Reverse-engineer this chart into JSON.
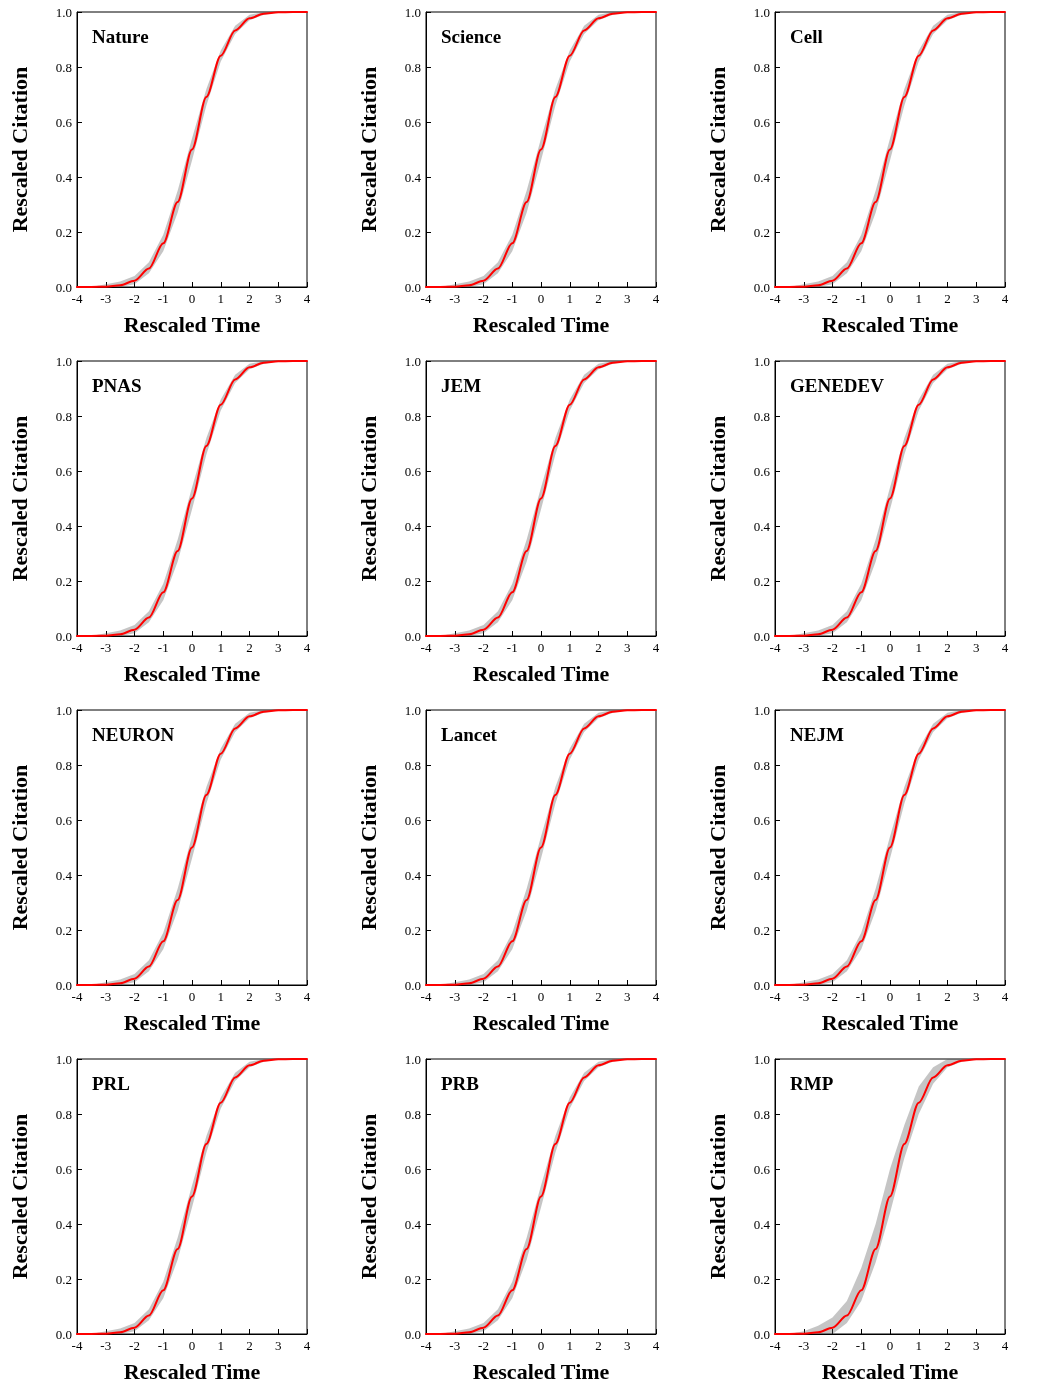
{
  "chart_data": [
    {
      "type": "line",
      "title": "Nature",
      "xlabel": "Rescaled Time",
      "ylabel": "Rescaled Citation",
      "x": [
        -4,
        -3.5,
        -3,
        -2.5,
        -2,
        -1.5,
        -1,
        -0.5,
        0,
        0.5,
        1,
        1.5,
        2,
        2.5,
        3,
        3.5,
        4
      ],
      "series": [
        {
          "color": "#ff0000",
          "values": [
            0,
            0,
            0.001,
            0.006,
            0.023,
            0.067,
            0.159,
            0.309,
            0.5,
            0.691,
            0.841,
            0.933,
            0.977,
            0.994,
            0.999,
            1,
            1
          ],
          "lower": [
            0,
            0,
            0,
            0,
            0.01,
            0.05,
            0.13,
            0.27,
            0.46,
            0.66,
            0.82,
            0.92,
            0.97,
            0.99,
            1,
            1,
            1
          ],
          "upper": [
            0,
            0,
            0.01,
            0.02,
            0.04,
            0.09,
            0.19,
            0.35,
            0.54,
            0.72,
            0.86,
            0.95,
            0.99,
            1,
            1,
            1,
            1
          ]
        }
      ],
      "xlim": [
        -4,
        4
      ],
      "ylim": [
        0,
        1
      ],
      "xticks": [
        -4,
        -3,
        -2,
        -1,
        0,
        1,
        2,
        3,
        4
      ],
      "yticks": [
        {
          "value": 0,
          "label": "0.0"
        },
        {
          "value": 0.2,
          "label": "0.2"
        },
        {
          "value": 0.4,
          "label": "0.4"
        },
        {
          "value": 0.6,
          "label": "0.6"
        },
        {
          "value": 0.8,
          "label": "0.8"
        },
        {
          "value": 1,
          "label": "1.0"
        }
      ],
      "grid": false,
      "marker": "none",
      "line_style": "solid"
    },
    {
      "type": "line",
      "title": "Science",
      "xlabel": "Rescaled Time",
      "ylabel": "Rescaled Citation",
      "x": [
        -4,
        -3.5,
        -3,
        -2.5,
        -2,
        -1.5,
        -1,
        -0.5,
        0,
        0.5,
        1,
        1.5,
        2,
        2.5,
        3,
        3.5,
        4
      ],
      "series": [
        {
          "color": "#ff0000",
          "values": [
            0,
            0,
            0.001,
            0.006,
            0.023,
            0.067,
            0.159,
            0.309,
            0.5,
            0.691,
            0.841,
            0.933,
            0.977,
            0.994,
            0.999,
            1,
            1
          ],
          "lower": [
            0,
            0,
            0,
            0,
            0.01,
            0.05,
            0.13,
            0.27,
            0.46,
            0.66,
            0.82,
            0.92,
            0.97,
            0.99,
            1,
            1,
            1
          ],
          "upper": [
            0,
            0,
            0.01,
            0.02,
            0.04,
            0.09,
            0.19,
            0.35,
            0.54,
            0.72,
            0.86,
            0.95,
            0.99,
            1,
            1,
            1,
            1
          ]
        }
      ],
      "xlim": [
        -4,
        4
      ],
      "ylim": [
        0,
        1
      ],
      "xticks": [
        -4,
        -3,
        -2,
        -1,
        0,
        1,
        2,
        3,
        4
      ],
      "yticks": [
        {
          "value": 0,
          "label": "0.0"
        },
        {
          "value": 0.2,
          "label": "0.2"
        },
        {
          "value": 0.4,
          "label": "0.4"
        },
        {
          "value": 0.6,
          "label": "0.6"
        },
        {
          "value": 0.8,
          "label": "0.8"
        },
        {
          "value": 1,
          "label": "1.0"
        }
      ],
      "grid": false,
      "marker": "none",
      "line_style": "solid"
    },
    {
      "type": "line",
      "title": "Cell",
      "xlabel": "Rescaled Time",
      "ylabel": "Rescaled Citation",
      "x": [
        -4,
        -3.5,
        -3,
        -2.5,
        -2,
        -1.5,
        -1,
        -0.5,
        0,
        0.5,
        1,
        1.5,
        2,
        2.5,
        3,
        3.5,
        4
      ],
      "series": [
        {
          "color": "#ff0000",
          "values": [
            0,
            0,
            0.001,
            0.006,
            0.023,
            0.067,
            0.159,
            0.309,
            0.5,
            0.691,
            0.841,
            0.933,
            0.977,
            0.994,
            0.999,
            1,
            1
          ],
          "lower": [
            0,
            0,
            0,
            0,
            0.01,
            0.05,
            0.13,
            0.27,
            0.46,
            0.66,
            0.82,
            0.92,
            0.97,
            0.99,
            1,
            1,
            1
          ],
          "upper": [
            0,
            0,
            0.01,
            0.02,
            0.04,
            0.09,
            0.19,
            0.35,
            0.54,
            0.72,
            0.86,
            0.95,
            0.99,
            1,
            1,
            1,
            1
          ]
        }
      ],
      "xlim": [
        -4,
        4
      ],
      "ylim": [
        0,
        1
      ],
      "xticks": [
        -4,
        -3,
        -2,
        -1,
        0,
        1,
        2,
        3,
        4
      ],
      "yticks": [
        {
          "value": 0,
          "label": "0.0"
        },
        {
          "value": 0.2,
          "label": "0.2"
        },
        {
          "value": 0.4,
          "label": "0.4"
        },
        {
          "value": 0.6,
          "label": "0.6"
        },
        {
          "value": 0.8,
          "label": "0.8"
        },
        {
          "value": 1,
          "label": "1.0"
        }
      ],
      "grid": false,
      "marker": "none",
      "line_style": "solid"
    },
    {
      "type": "line",
      "title": "PNAS",
      "xlabel": "Rescaled Time",
      "ylabel": "Rescaled Citation",
      "x": [
        -4,
        -3.5,
        -3,
        -2.5,
        -2,
        -1.5,
        -1,
        -0.5,
        0,
        0.5,
        1,
        1.5,
        2,
        2.5,
        3,
        3.5,
        4
      ],
      "series": [
        {
          "color": "#ff0000",
          "values": [
            0,
            0,
            0.001,
            0.006,
            0.023,
            0.067,
            0.159,
            0.309,
            0.5,
            0.691,
            0.841,
            0.933,
            0.977,
            0.994,
            0.999,
            1,
            1
          ],
          "lower": [
            0,
            0,
            0,
            0,
            0.01,
            0.05,
            0.13,
            0.27,
            0.46,
            0.66,
            0.82,
            0.92,
            0.97,
            0.99,
            1,
            1,
            1
          ],
          "upper": [
            0,
            0,
            0.01,
            0.02,
            0.04,
            0.09,
            0.19,
            0.35,
            0.54,
            0.72,
            0.86,
            0.95,
            0.99,
            1,
            1,
            1,
            1
          ]
        }
      ],
      "xlim": [
        -4,
        4
      ],
      "ylim": [
        0,
        1
      ],
      "xticks": [
        -4,
        -3,
        -2,
        -1,
        0,
        1,
        2,
        3,
        4
      ],
      "yticks": [
        {
          "value": 0,
          "label": "0.0"
        },
        {
          "value": 0.2,
          "label": "0.2"
        },
        {
          "value": 0.4,
          "label": "0.4"
        },
        {
          "value": 0.6,
          "label": "0.6"
        },
        {
          "value": 0.8,
          "label": "0.8"
        },
        {
          "value": 1,
          "label": "1.0"
        }
      ],
      "grid": false,
      "marker": "none",
      "line_style": "solid"
    },
    {
      "type": "line",
      "title": "JEM",
      "xlabel": "Rescaled Time",
      "ylabel": "Rescaled Citation",
      "x": [
        -4,
        -3.5,
        -3,
        -2.5,
        -2,
        -1.5,
        -1,
        -0.5,
        0,
        0.5,
        1,
        1.5,
        2,
        2.5,
        3,
        3.5,
        4
      ],
      "series": [
        {
          "color": "#ff0000",
          "values": [
            0,
            0,
            0.001,
            0.006,
            0.023,
            0.067,
            0.159,
            0.309,
            0.5,
            0.691,
            0.841,
            0.933,
            0.977,
            0.994,
            0.999,
            1,
            1
          ],
          "lower": [
            0,
            0,
            0,
            0,
            0.01,
            0.05,
            0.13,
            0.27,
            0.46,
            0.66,
            0.82,
            0.92,
            0.97,
            0.99,
            1,
            1,
            1
          ],
          "upper": [
            0,
            0,
            0.01,
            0.02,
            0.04,
            0.09,
            0.19,
            0.35,
            0.54,
            0.72,
            0.86,
            0.95,
            0.99,
            1,
            1,
            1,
            1
          ]
        }
      ],
      "xlim": [
        -4,
        4
      ],
      "ylim": [
        0,
        1
      ],
      "xticks": [
        -4,
        -3,
        -2,
        -1,
        0,
        1,
        2,
        3,
        4
      ],
      "yticks": [
        {
          "value": 0,
          "label": "0.0"
        },
        {
          "value": 0.2,
          "label": "0.2"
        },
        {
          "value": 0.4,
          "label": "0.4"
        },
        {
          "value": 0.6,
          "label": "0.6"
        },
        {
          "value": 0.8,
          "label": "0.8"
        },
        {
          "value": 1,
          "label": "1.0"
        }
      ],
      "grid": false,
      "marker": "none",
      "line_style": "solid"
    },
    {
      "type": "line",
      "title": "GENEDEV",
      "xlabel": "Rescaled Time",
      "ylabel": "Rescaled Citation",
      "x": [
        -4,
        -3.5,
        -3,
        -2.5,
        -2,
        -1.5,
        -1,
        -0.5,
        0,
        0.5,
        1,
        1.5,
        2,
        2.5,
        3,
        3.5,
        4
      ],
      "series": [
        {
          "color": "#ff0000",
          "values": [
            0,
            0,
            0.001,
            0.006,
            0.023,
            0.067,
            0.159,
            0.309,
            0.5,
            0.691,
            0.841,
            0.933,
            0.977,
            0.994,
            0.999,
            1,
            1
          ],
          "lower": [
            0,
            0,
            0,
            0,
            0.01,
            0.05,
            0.13,
            0.27,
            0.46,
            0.66,
            0.82,
            0.92,
            0.97,
            0.99,
            1,
            1,
            1
          ],
          "upper": [
            0,
            0,
            0.01,
            0.02,
            0.04,
            0.09,
            0.19,
            0.35,
            0.54,
            0.72,
            0.86,
            0.95,
            0.99,
            1,
            1,
            1,
            1
          ]
        }
      ],
      "xlim": [
        -4,
        4
      ],
      "ylim": [
        0,
        1
      ],
      "xticks": [
        -4,
        -3,
        -2,
        -1,
        0,
        1,
        2,
        3,
        4
      ],
      "yticks": [
        {
          "value": 0,
          "label": "0.0"
        },
        {
          "value": 0.2,
          "label": "0.2"
        },
        {
          "value": 0.4,
          "label": "0.4"
        },
        {
          "value": 0.6,
          "label": "0.6"
        },
        {
          "value": 0.8,
          "label": "0.8"
        },
        {
          "value": 1,
          "label": "1.0"
        }
      ],
      "grid": false,
      "marker": "none",
      "line_style": "solid"
    },
    {
      "type": "line",
      "title": "NEURON",
      "xlabel": "Rescaled Time",
      "ylabel": "Rescaled Citation",
      "x": [
        -4,
        -3.5,
        -3,
        -2.5,
        -2,
        -1.5,
        -1,
        -0.5,
        0,
        0.5,
        1,
        1.5,
        2,
        2.5,
        3,
        3.5,
        4
      ],
      "series": [
        {
          "color": "#ff0000",
          "values": [
            0,
            0,
            0.001,
            0.006,
            0.023,
            0.067,
            0.159,
            0.309,
            0.5,
            0.691,
            0.841,
            0.933,
            0.977,
            0.994,
            0.999,
            1,
            1
          ],
          "lower": [
            0,
            0,
            0,
            0,
            0.01,
            0.05,
            0.13,
            0.27,
            0.46,
            0.66,
            0.82,
            0.92,
            0.97,
            0.99,
            1,
            1,
            1
          ],
          "upper": [
            0,
            0,
            0.01,
            0.02,
            0.04,
            0.09,
            0.19,
            0.35,
            0.54,
            0.72,
            0.86,
            0.95,
            0.99,
            1,
            1,
            1,
            1
          ]
        }
      ],
      "xlim": [
        -4,
        4
      ],
      "ylim": [
        0,
        1
      ],
      "xticks": [
        -4,
        -3,
        -2,
        -1,
        0,
        1,
        2,
        3,
        4
      ],
      "yticks": [
        {
          "value": 0,
          "label": "0.0"
        },
        {
          "value": 0.2,
          "label": "0.2"
        },
        {
          "value": 0.4,
          "label": "0.4"
        },
        {
          "value": 0.6,
          "label": "0.6"
        },
        {
          "value": 0.8,
          "label": "0.8"
        },
        {
          "value": 1,
          "label": "1.0"
        }
      ],
      "grid": false,
      "marker": "none",
      "line_style": "solid"
    },
    {
      "type": "line",
      "title": "Lancet",
      "xlabel": "Rescaled Time",
      "ylabel": "Rescaled Citation",
      "x": [
        -4,
        -3.5,
        -3,
        -2.5,
        -2,
        -1.5,
        -1,
        -0.5,
        0,
        0.5,
        1,
        1.5,
        2,
        2.5,
        3,
        3.5,
        4
      ],
      "series": [
        {
          "color": "#ff0000",
          "values": [
            0,
            0,
            0.001,
            0.006,
            0.023,
            0.067,
            0.159,
            0.309,
            0.5,
            0.691,
            0.841,
            0.933,
            0.977,
            0.994,
            0.999,
            1,
            1
          ],
          "lower": [
            0,
            0,
            0,
            0,
            0.01,
            0.05,
            0.13,
            0.27,
            0.46,
            0.66,
            0.82,
            0.92,
            0.97,
            0.99,
            1,
            1,
            1
          ],
          "upper": [
            0,
            0,
            0.01,
            0.02,
            0.04,
            0.09,
            0.19,
            0.35,
            0.54,
            0.72,
            0.86,
            0.95,
            0.99,
            1,
            1,
            1,
            1
          ]
        }
      ],
      "xlim": [
        -4,
        4
      ],
      "ylim": [
        0,
        1
      ],
      "xticks": [
        -4,
        -3,
        -2,
        -1,
        0,
        1,
        2,
        3,
        4
      ],
      "yticks": [
        {
          "value": 0,
          "label": "0.0"
        },
        {
          "value": 0.2,
          "label": "0.2"
        },
        {
          "value": 0.4,
          "label": "0.4"
        },
        {
          "value": 0.6,
          "label": "0.6"
        },
        {
          "value": 0.8,
          "label": "0.8"
        },
        {
          "value": 1,
          "label": "1.0"
        }
      ],
      "grid": false,
      "marker": "none",
      "line_style": "solid"
    },
    {
      "type": "line",
      "title": "NEJM",
      "xlabel": "Rescaled Time",
      "ylabel": "Rescaled Citation",
      "x": [
        -4,
        -3.5,
        -3,
        -2.5,
        -2,
        -1.5,
        -1,
        -0.5,
        0,
        0.5,
        1,
        1.5,
        2,
        2.5,
        3,
        3.5,
        4
      ],
      "series": [
        {
          "color": "#ff0000",
          "values": [
            0,
            0,
            0.001,
            0.006,
            0.023,
            0.067,
            0.159,
            0.309,
            0.5,
            0.691,
            0.841,
            0.933,
            0.977,
            0.994,
            0.999,
            1,
            1
          ],
          "lower": [
            0,
            0,
            0,
            0,
            0.01,
            0.05,
            0.13,
            0.27,
            0.46,
            0.66,
            0.82,
            0.92,
            0.97,
            0.99,
            1,
            1,
            1
          ],
          "upper": [
            0,
            0,
            0.01,
            0.02,
            0.04,
            0.09,
            0.19,
            0.35,
            0.54,
            0.72,
            0.86,
            0.95,
            0.99,
            1,
            1,
            1,
            1
          ]
        }
      ],
      "xlim": [
        -4,
        4
      ],
      "ylim": [
        0,
        1
      ],
      "xticks": [
        -4,
        -3,
        -2,
        -1,
        0,
        1,
        2,
        3,
        4
      ],
      "yticks": [
        {
          "value": 0,
          "label": "0.0"
        },
        {
          "value": 0.2,
          "label": "0.2"
        },
        {
          "value": 0.4,
          "label": "0.4"
        },
        {
          "value": 0.6,
          "label": "0.6"
        },
        {
          "value": 0.8,
          "label": "0.8"
        },
        {
          "value": 1,
          "label": "1.0"
        }
      ],
      "grid": false,
      "marker": "none",
      "line_style": "solid"
    },
    {
      "type": "line",
      "title": "PRL",
      "xlabel": "Rescaled Time",
      "ylabel": "Rescaled Citation",
      "x": [
        -4,
        -3.5,
        -3,
        -2.5,
        -2,
        -1.5,
        -1,
        -0.5,
        0,
        0.5,
        1,
        1.5,
        2,
        2.5,
        3,
        3.5,
        4
      ],
      "series": [
        {
          "color": "#ff0000",
          "values": [
            0,
            0,
            0.001,
            0.006,
            0.023,
            0.067,
            0.159,
            0.309,
            0.5,
            0.691,
            0.841,
            0.933,
            0.977,
            0.994,
            0.999,
            1,
            1
          ],
          "lower": [
            0,
            0,
            0,
            0,
            0.01,
            0.05,
            0.13,
            0.27,
            0.46,
            0.66,
            0.82,
            0.92,
            0.97,
            0.99,
            1,
            1,
            1
          ],
          "upper": [
            0,
            0,
            0.01,
            0.02,
            0.04,
            0.09,
            0.19,
            0.35,
            0.54,
            0.72,
            0.86,
            0.95,
            0.99,
            1,
            1,
            1,
            1
          ]
        }
      ],
      "xlim": [
        -4,
        4
      ],
      "ylim": [
        0,
        1
      ],
      "xticks": [
        -4,
        -3,
        -2,
        -1,
        0,
        1,
        2,
        3,
        4
      ],
      "yticks": [
        {
          "value": 0,
          "label": "0.0"
        },
        {
          "value": 0.2,
          "label": "0.2"
        },
        {
          "value": 0.4,
          "label": "0.4"
        },
        {
          "value": 0.6,
          "label": "0.6"
        },
        {
          "value": 0.8,
          "label": "0.8"
        },
        {
          "value": 1,
          "label": "1.0"
        }
      ],
      "grid": false,
      "marker": "none",
      "line_style": "solid"
    },
    {
      "type": "line",
      "title": "PRB",
      "xlabel": "Rescaled Time",
      "ylabel": "Rescaled Citation",
      "x": [
        -4,
        -3.5,
        -3,
        -2.5,
        -2,
        -1.5,
        -1,
        -0.5,
        0,
        0.5,
        1,
        1.5,
        2,
        2.5,
        3,
        3.5,
        4
      ],
      "series": [
        {
          "color": "#ff0000",
          "values": [
            0,
            0,
            0.001,
            0.006,
            0.023,
            0.067,
            0.159,
            0.309,
            0.5,
            0.691,
            0.841,
            0.933,
            0.977,
            0.994,
            0.999,
            1,
            1
          ],
          "lower": [
            0,
            0,
            0,
            0,
            0.01,
            0.05,
            0.13,
            0.27,
            0.46,
            0.66,
            0.82,
            0.92,
            0.97,
            0.99,
            1,
            1,
            1
          ],
          "upper": [
            0,
            0,
            0.01,
            0.02,
            0.04,
            0.09,
            0.19,
            0.35,
            0.54,
            0.72,
            0.86,
            0.95,
            0.99,
            1,
            1,
            1,
            1
          ]
        }
      ],
      "xlim": [
        -4,
        4
      ],
      "ylim": [
        0,
        1
      ],
      "xticks": [
        -4,
        -3,
        -2,
        -1,
        0,
        1,
        2,
        3,
        4
      ],
      "yticks": [
        {
          "value": 0,
          "label": "0.0"
        },
        {
          "value": 0.2,
          "label": "0.2"
        },
        {
          "value": 0.4,
          "label": "0.4"
        },
        {
          "value": 0.6,
          "label": "0.6"
        },
        {
          "value": 0.8,
          "label": "0.8"
        },
        {
          "value": 1,
          "label": "1.0"
        }
      ],
      "grid": false,
      "marker": "none",
      "line_style": "solid"
    },
    {
      "type": "line",
      "title": "RMP",
      "xlabel": "Rescaled Time",
      "ylabel": "Rescaled Citation",
      "x": [
        -4,
        -3.5,
        -3,
        -2.5,
        -2,
        -1.5,
        -1,
        -0.5,
        0,
        0.5,
        1,
        1.5,
        2,
        2.5,
        3,
        3.5,
        4
      ],
      "series": [
        {
          "color": "#ff0000",
          "values": [
            0,
            0,
            0.001,
            0.006,
            0.023,
            0.067,
            0.159,
            0.309,
            0.5,
            0.691,
            0.841,
            0.933,
            0.977,
            0.994,
            0.999,
            1,
            1
          ],
          "lower": [
            0,
            0,
            0,
            0,
            0,
            0.04,
            0.12,
            0.26,
            0.44,
            0.64,
            0.8,
            0.91,
            0.97,
            0.99,
            1,
            1,
            1
          ],
          "upper": [
            0,
            0,
            0.01,
            0.03,
            0.06,
            0.12,
            0.24,
            0.4,
            0.6,
            0.76,
            0.9,
            0.97,
            1,
            1,
            1,
            1,
            1
          ]
        }
      ],
      "xlim": [
        -4,
        4
      ],
      "ylim": [
        0,
        1
      ],
      "xticks": [
        -4,
        -3,
        -2,
        -1,
        0,
        1,
        2,
        3,
        4
      ],
      "yticks": [
        {
          "value": 0,
          "label": "0.0"
        },
        {
          "value": 0.2,
          "label": "0.2"
        },
        {
          "value": 0.4,
          "label": "0.4"
        },
        {
          "value": 0.6,
          "label": "0.6"
        },
        {
          "value": 0.8,
          "label": "0.8"
        },
        {
          "value": 1,
          "label": "1.0"
        }
      ],
      "grid": false,
      "marker": "none",
      "line_style": "solid"
    }
  ]
}
